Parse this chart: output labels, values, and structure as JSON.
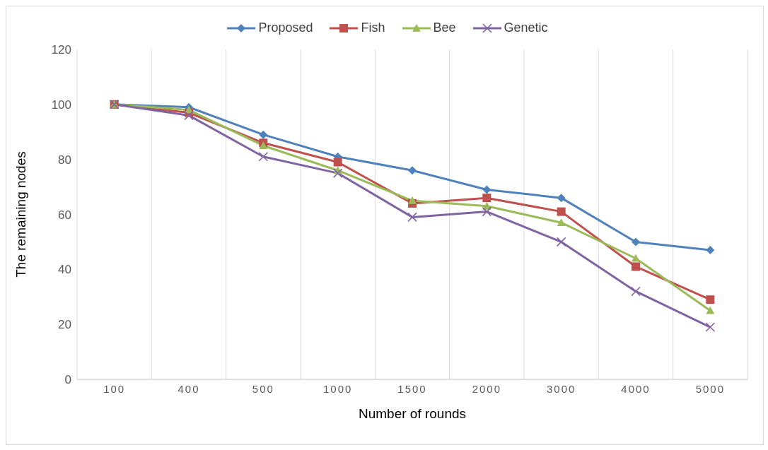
{
  "chart_data": {
    "type": "line",
    "xlabel": "Number of rounds",
    "ylabel": "The remaining nodes",
    "categories": [
      "100",
      "400",
      "500",
      "1000",
      "1500",
      "2000",
      "3000",
      "4000",
      "5000"
    ],
    "series": [
      {
        "name": "Proposed",
        "color": "#4f81bd",
        "marker": "diamond",
        "values": [
          100,
          99,
          89,
          81,
          76,
          69,
          66,
          50,
          47
        ]
      },
      {
        "name": "Fish",
        "color": "#c0504d",
        "marker": "square",
        "values": [
          100,
          97,
          86,
          79,
          64,
          66,
          61,
          41,
          29
        ]
      },
      {
        "name": "Bee",
        "color": "#9bbb59",
        "marker": "triangle",
        "values": [
          100,
          98,
          85,
          76,
          65,
          63,
          57,
          44,
          25
        ]
      },
      {
        "name": "Genetic",
        "color": "#8064a2",
        "marker": "cross",
        "values": [
          100,
          96,
          81,
          75,
          59,
          61,
          50,
          32,
          19
        ]
      }
    ],
    "ylim": [
      0,
      120
    ],
    "yticks": [
      0,
      20,
      40,
      60,
      80,
      100,
      120
    ],
    "grid": "x",
    "legend": "top",
    "line_style": "solid"
  }
}
